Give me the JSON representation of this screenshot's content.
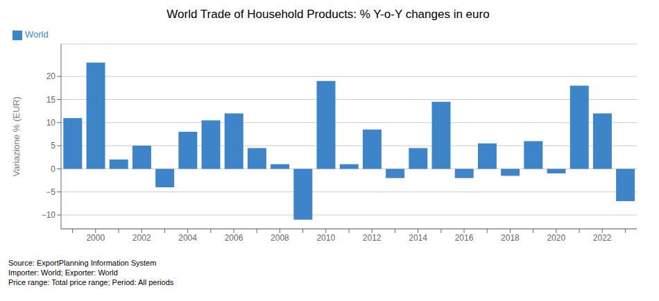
{
  "chart_data": {
    "type": "bar",
    "title": "World Trade of Household Products: % Y-o-Y changes in euro",
    "ylabel": "Variazione % (EUR)",
    "source": [
      "Source: ExportPlanning Information System",
      "Importer: World; Exporter: World",
      "Price range: Total price range; Period: All periods"
    ],
    "categories": [
      null,
      "2000",
      null,
      "2002",
      null,
      "2004",
      null,
      "2006",
      null,
      "2008",
      null,
      "2010",
      null,
      "2012",
      null,
      "2014",
      null,
      "2016",
      null,
      "2018",
      null,
      "2020",
      null,
      "2022",
      null
    ],
    "series": [
      {
        "name": "World",
        "color": "#3d85c8",
        "values": [
          11.0,
          23.0,
          2.0,
          5.0,
          -4.0,
          8.0,
          10.5,
          12.0,
          4.5,
          1.0,
          -11.0,
          19.0,
          1.0,
          8.5,
          -2.0,
          4.5,
          14.5,
          -2.0,
          5.5,
          -1.5,
          6.0,
          -1.0,
          18.0,
          12.0,
          -7.0
        ]
      }
    ],
    "ylim": [
      -13,
      27
    ],
    "yticks": [
      {
        "value": -10,
        "label": "−10"
      },
      {
        "value": -5,
        "label": "−5"
      },
      0,
      5,
      10,
      15,
      20
    ],
    "grid": true,
    "legend": "upper left"
  }
}
